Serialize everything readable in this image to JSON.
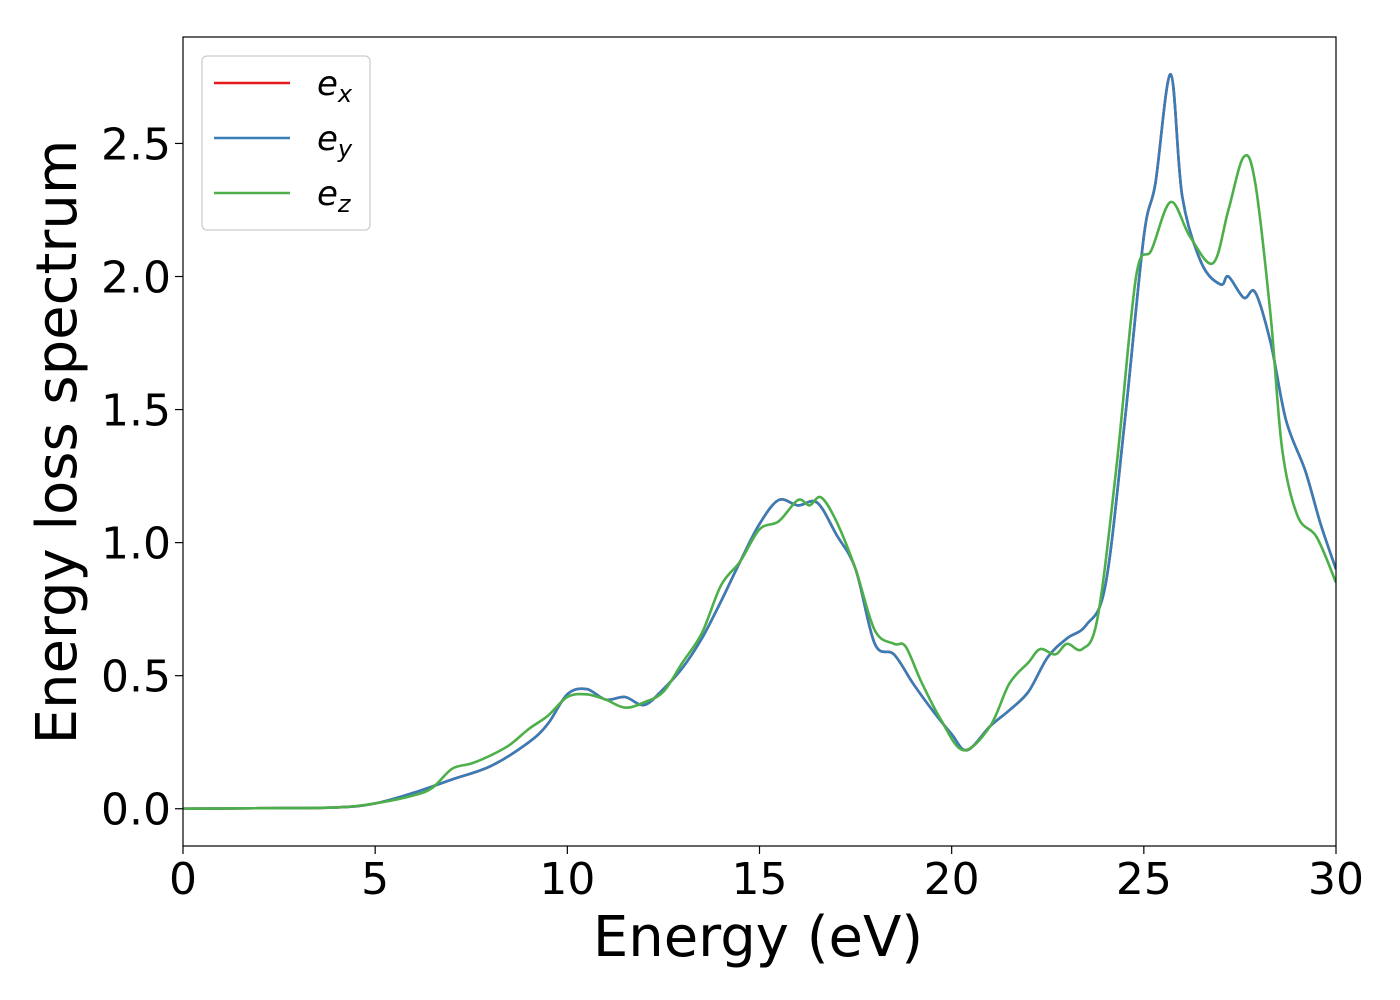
{
  "chart_data": {
    "type": "line",
    "title": "",
    "xlabel": "Energy (eV)",
    "ylabel": "Energy loss spectrum",
    "xlim": [
      0,
      30
    ],
    "ylim": [
      -0.14,
      2.9
    ],
    "xticks": [
      0,
      5,
      10,
      15,
      20,
      25,
      30
    ],
    "xtick_labels": [
      "0",
      "5",
      "10",
      "15",
      "20",
      "25",
      "30"
    ],
    "yticks": [
      0.0,
      0.5,
      1.0,
      1.5,
      2.0,
      2.5
    ],
    "ytick_labels": [
      "0.0",
      "0.5",
      "1.0",
      "1.5",
      "2.0",
      "2.5"
    ],
    "grid": false,
    "legend": {
      "placement": "top-left"
    },
    "series": [
      {
        "name": "e",
        "subscript": "x",
        "color": "#e41a1c",
        "x": [
          0,
          2,
          4,
          5,
          6,
          7,
          8,
          9,
          9.5,
          10,
          10.5,
          11,
          11.5,
          12,
          12.5,
          13,
          13.5,
          14,
          14.5,
          15,
          15.5,
          16,
          16.5,
          17,
          17.5,
          18,
          18.5,
          19,
          19.5,
          20,
          20.4,
          21,
          21.5,
          22,
          22.5,
          23,
          23.5,
          24,
          24.5,
          25,
          25.3,
          25.7,
          26,
          26.5,
          27,
          27.2,
          27.6,
          27.9,
          28.3,
          28.7,
          29.2,
          29.6,
          30
        ],
        "y": [
          0,
          0.002,
          0.005,
          0.02,
          0.06,
          0.11,
          0.16,
          0.25,
          0.32,
          0.43,
          0.45,
          0.41,
          0.42,
          0.39,
          0.45,
          0.53,
          0.64,
          0.78,
          0.93,
          1.07,
          1.16,
          1.14,
          1.15,
          1.03,
          0.9,
          0.62,
          0.58,
          0.47,
          0.37,
          0.28,
          0.22,
          0.31,
          0.37,
          0.44,
          0.57,
          0.64,
          0.69,
          0.84,
          1.45,
          2.15,
          2.35,
          2.76,
          2.3,
          2.05,
          1.97,
          2.0,
          1.92,
          1.94,
          1.75,
          1.46,
          1.27,
          1.07,
          0.9
        ]
      },
      {
        "name": "e",
        "subscript": "y",
        "color": "#377eb8",
        "x": [
          0,
          2,
          4,
          5,
          6,
          7,
          8,
          9,
          9.5,
          10,
          10.5,
          11,
          11.5,
          12,
          12.5,
          13,
          13.5,
          14,
          14.5,
          15,
          15.5,
          16,
          16.5,
          17,
          17.5,
          18,
          18.5,
          19,
          19.5,
          20,
          20.4,
          21,
          21.5,
          22,
          22.5,
          23,
          23.5,
          24,
          24.5,
          25,
          25.3,
          25.7,
          26,
          26.5,
          27,
          27.2,
          27.6,
          27.9,
          28.3,
          28.7,
          29.2,
          29.6,
          30
        ],
        "y": [
          0,
          0.002,
          0.005,
          0.02,
          0.06,
          0.11,
          0.16,
          0.25,
          0.32,
          0.43,
          0.45,
          0.41,
          0.42,
          0.39,
          0.45,
          0.53,
          0.64,
          0.78,
          0.93,
          1.07,
          1.16,
          1.14,
          1.15,
          1.03,
          0.9,
          0.62,
          0.58,
          0.47,
          0.37,
          0.28,
          0.22,
          0.31,
          0.37,
          0.44,
          0.57,
          0.64,
          0.69,
          0.84,
          1.45,
          2.15,
          2.35,
          2.76,
          2.3,
          2.05,
          1.97,
          2.0,
          1.92,
          1.94,
          1.75,
          1.46,
          1.27,
          1.07,
          0.9
        ]
      },
      {
        "name": "e",
        "subscript": "z",
        "color": "#4daf4a",
        "x": [
          0,
          2,
          4,
          5,
          6,
          6.5,
          7,
          7.5,
          8,
          8.5,
          9,
          9.5,
          10,
          10.5,
          11,
          11.5,
          12,
          12.5,
          13,
          13.5,
          14,
          14.5,
          15,
          15.5,
          16,
          16.3,
          16.6,
          17,
          17.5,
          18,
          18.5,
          18.8,
          19.2,
          19.7,
          20.3,
          21,
          21.5,
          22,
          22.3,
          22.7,
          23,
          23.4,
          23.8,
          24.3,
          24.8,
          25.2,
          25.7,
          26.2,
          26.8,
          27.2,
          27.6,
          27.9,
          28.3,
          28.6,
          29,
          29.5,
          30
        ],
        "y": [
          0,
          0.002,
          0.005,
          0.02,
          0.05,
          0.08,
          0.15,
          0.17,
          0.2,
          0.24,
          0.3,
          0.35,
          0.42,
          0.43,
          0.41,
          0.38,
          0.4,
          0.44,
          0.55,
          0.66,
          0.84,
          0.93,
          1.05,
          1.08,
          1.16,
          1.14,
          1.17,
          1.08,
          0.9,
          0.67,
          0.62,
          0.61,
          0.48,
          0.34,
          0.22,
          0.31,
          0.47,
          0.55,
          0.6,
          0.58,
          0.62,
          0.6,
          0.72,
          1.3,
          2.0,
          2.1,
          2.28,
          2.15,
          2.05,
          2.25,
          2.45,
          2.35,
          1.85,
          1.35,
          1.1,
          1.02,
          0.85
        ]
      }
    ]
  }
}
